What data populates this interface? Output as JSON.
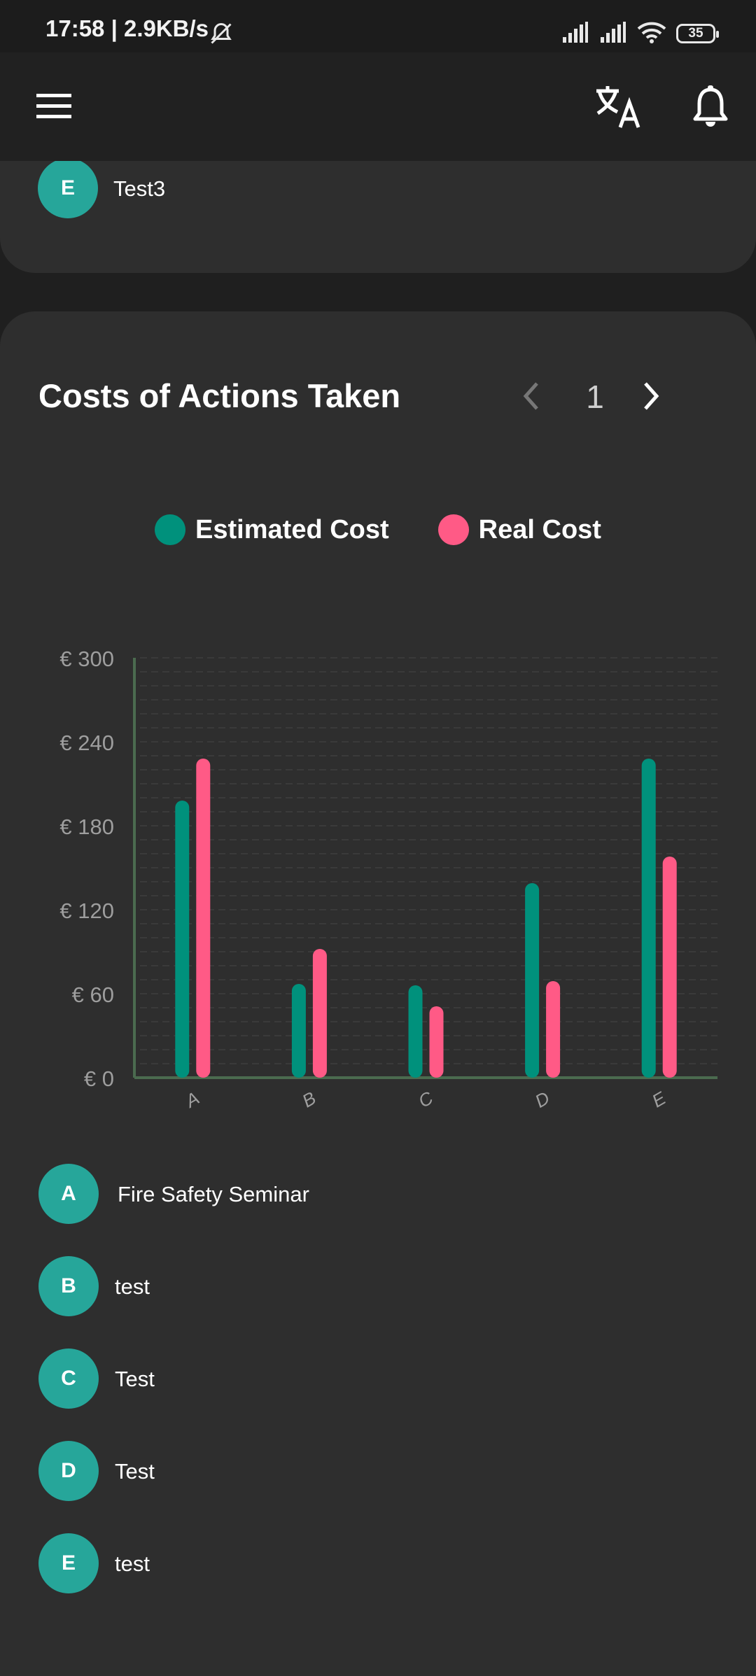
{
  "status_bar": {
    "time_text": "17:58 | 2.9KB/s",
    "battery": "35",
    "icons": [
      "mute-bell-icon",
      "signal-icon",
      "signal-icon",
      "wifi-icon",
      "battery-icon"
    ]
  },
  "app_bar": {
    "icons": [
      "menu-icon",
      "translate-icon",
      "bell-icon"
    ]
  },
  "top_list": [
    {
      "letter": "E",
      "label": "Test3"
    }
  ],
  "chart_card": {
    "title": "Costs of Actions Taken",
    "page": "1",
    "legend": [
      {
        "label": "Estimated Cost",
        "color": "#00917c"
      },
      {
        "label": "Real Cost",
        "color": "#ff5a86"
      }
    ]
  },
  "chart_data": {
    "type": "bar",
    "categories": [
      "A",
      "B",
      "C",
      "D",
      "E"
    ],
    "series": [
      {
        "name": "Estimated Cost",
        "color": "#00917c",
        "values": [
          198,
          67,
          66,
          139,
          228
        ]
      },
      {
        "name": "Real Cost",
        "color": "#ff5a86",
        "values": [
          228,
          92,
          51,
          69,
          158
        ]
      }
    ],
    "yticks": [
      "€ 0",
      "€ 60",
      "€ 120",
      "€ 180",
      "€ 240",
      "€ 300"
    ],
    "ylim": [
      0,
      300
    ],
    "grid": true,
    "legend_position": "top"
  },
  "bottom_list": [
    {
      "letter": "A",
      "label": "Fire Safety Seminar"
    },
    {
      "letter": "B",
      "label": "test"
    },
    {
      "letter": "C",
      "label": "Test"
    },
    {
      "letter": "D",
      "label": "Test"
    },
    {
      "letter": "E",
      "label": "test"
    }
  ]
}
